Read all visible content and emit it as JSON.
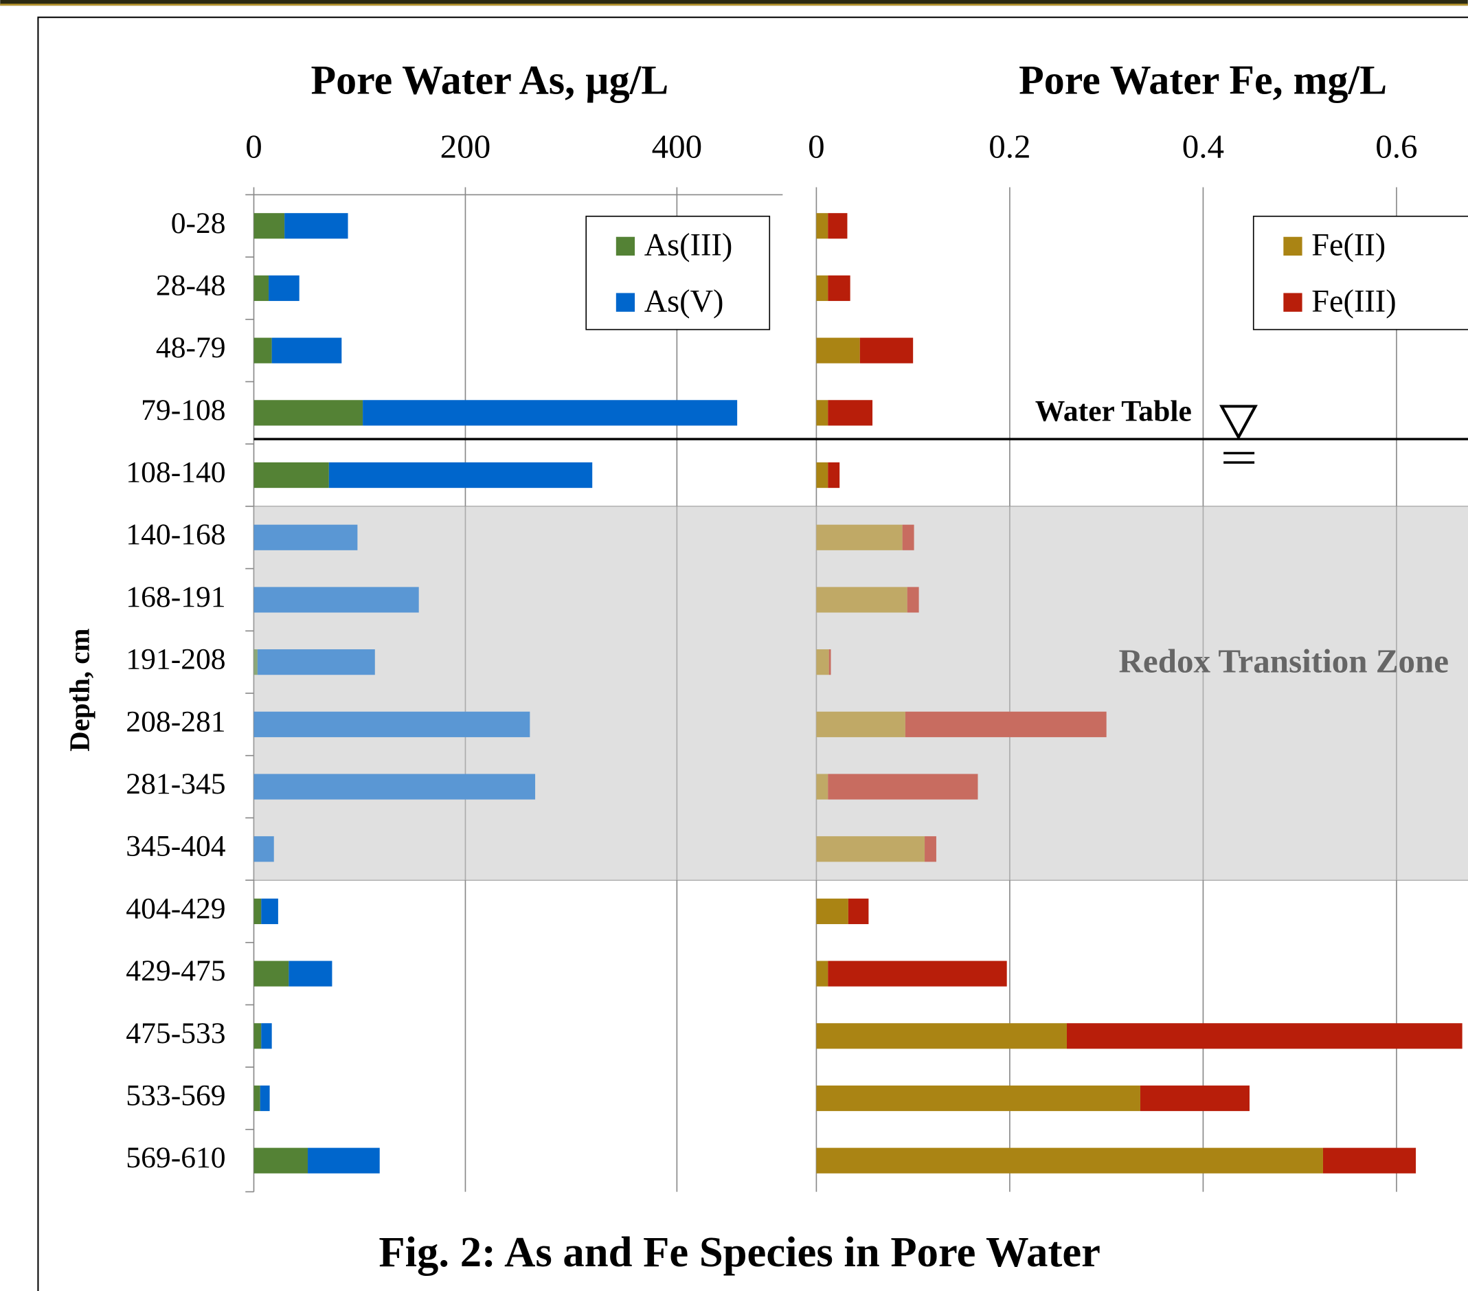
{
  "caption": "Fig. 2: As and Fe Species in Pore Water",
  "chart_data": [
    {
      "type": "bar",
      "orientation": "horizontal",
      "stacked": true,
      "title": "Pore Water As, µg/L",
      "y_label": "Depth, cm",
      "categories": [
        "0-28",
        "28-48",
        "48-79",
        "79-108",
        "108-140",
        "140-168",
        "168-191",
        "191-208",
        "208-281",
        "281-345",
        "345-404",
        "404-429",
        "429-475",
        "475-533",
        "533-569",
        "569-610"
      ],
      "series": [
        {
          "name": "As(III)",
          "color": "#548235",
          "values": [
            29,
            14,
            17,
            103,
            71,
            0,
            0,
            3.5,
            0,
            0,
            0,
            7,
            33,
            7,
            6,
            51
          ]
        },
        {
          "name": "As(V)",
          "color": "#0066cc",
          "values": [
            60,
            29,
            66,
            354,
            249,
            98,
            156,
            111,
            261,
            266,
            19,
            16,
            41,
            10,
            9,
            68
          ]
        }
      ],
      "xlim": [
        0,
        500
      ],
      "xticks": [
        0,
        200,
        400
      ],
      "grid": true,
      "legend": "upper right"
    },
    {
      "type": "bar",
      "orientation": "horizontal",
      "stacked": true,
      "title": "Pore Water Fe, mg/L",
      "series": [
        {
          "name": "Fe(II)",
          "color": "#aa8414",
          "values": [
            0.012,
            0.012,
            0.045,
            0.012,
            0.012,
            0.089,
            0.094,
            0.013,
            0.092,
            0.012,
            0.112,
            0.033,
            0.012,
            0.259,
            0.335,
            0.524
          ]
        },
        {
          "name": "Fe(III)",
          "color": "#b81e0a",
          "values": [
            0.02,
            0.023,
            0.055,
            0.046,
            0.012,
            0.012,
            0.012,
            0.002,
            0.208,
            0.155,
            0.012,
            0.021,
            0.185,
            0.409,
            0.113,
            0.096
          ]
        }
      ],
      "xlim": [
        0,
        0.8
      ],
      "xticks": [
        0,
        0.2,
        0.4,
        0.6
      ],
      "grid": true,
      "legend": "upper right",
      "annotations": [
        "Water Table",
        "Redox Transition Zone"
      ]
    }
  ]
}
